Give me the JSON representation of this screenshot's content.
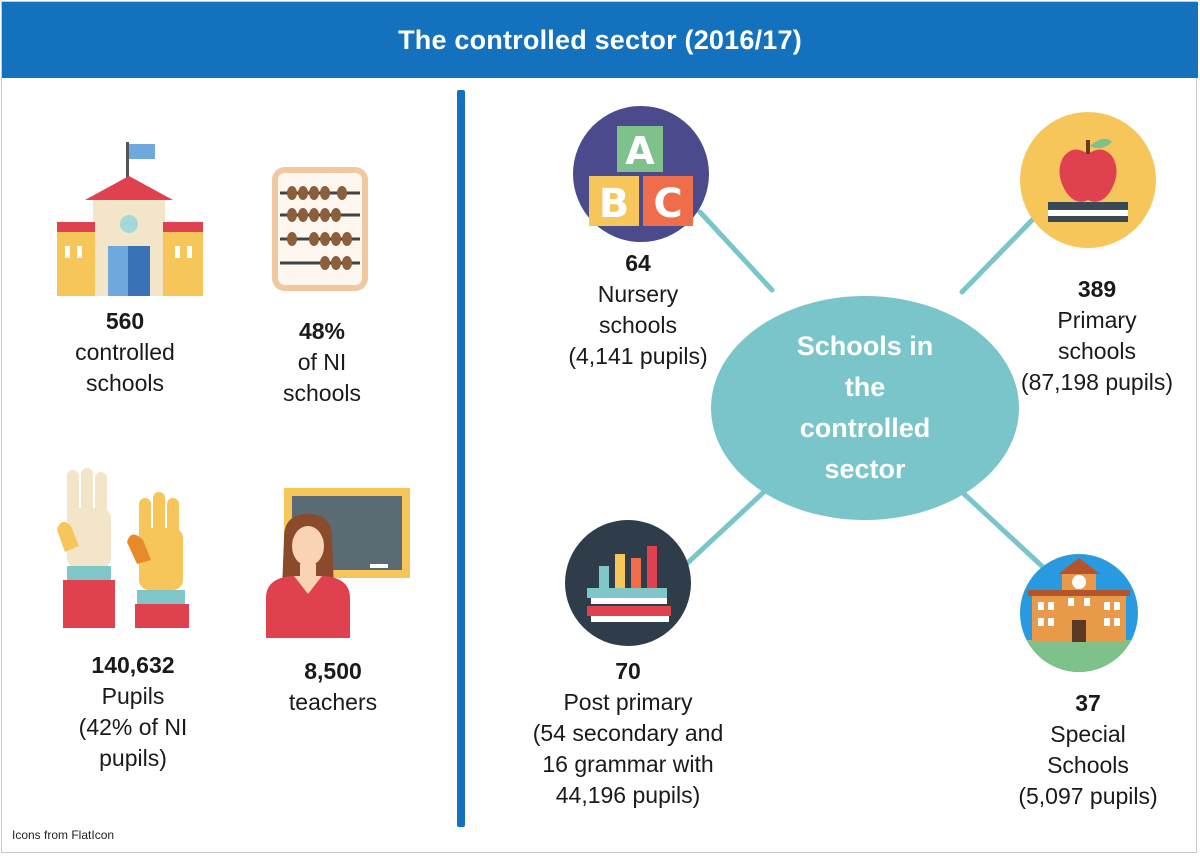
{
  "header": {
    "title": "The controlled sector (2016/17)"
  },
  "left_stats": [
    {
      "id": "controlled-schools",
      "number": "560",
      "label_lines": [
        "controlled",
        "schools"
      ],
      "icon": "school-building-icon"
    },
    {
      "id": "ni-schools-share",
      "number": "48%",
      "label_lines": [
        "of NI",
        "schools"
      ],
      "icon": "abacus-icon"
    },
    {
      "id": "pupils",
      "number": "140,632",
      "label_lines": [
        "Pupils",
        "(42% of NI",
        "pupils)"
      ],
      "icon": "raised-hands-icon"
    },
    {
      "id": "teachers",
      "number": "8,500",
      "label_lines": [
        "teachers"
      ],
      "icon": "teacher-icon"
    }
  ],
  "center": {
    "label": "Schools in the controlled sector"
  },
  "school_types": [
    {
      "id": "nursery",
      "number": "64",
      "label_lines": [
        "Nursery",
        "schools",
        "(4,141 pupils)"
      ],
      "icon": "abc-blocks-icon"
    },
    {
      "id": "primary",
      "number": "389",
      "label_lines": [
        "Primary",
        "schools",
        "(87,198 pupils)"
      ],
      "icon": "apple-on-book-icon"
    },
    {
      "id": "post-primary",
      "number": "70",
      "label_lines": [
        "Post primary",
        "(54 secondary and",
        "16 grammar with",
        "44,196 pupils)"
      ],
      "icon": "books-chart-icon"
    },
    {
      "id": "special",
      "number": "37",
      "label_lines": [
        "Special",
        "Schools",
        "(5,097 pupils)"
      ],
      "icon": "school-clock-tower-icon"
    }
  ],
  "footer": {
    "credit": "Icons from FlatIcon"
  },
  "colors": {
    "header_bg": "#1471be",
    "divider": "#1471be",
    "center_ellipse": "#79c5c9",
    "connector": "#79c5c9"
  }
}
